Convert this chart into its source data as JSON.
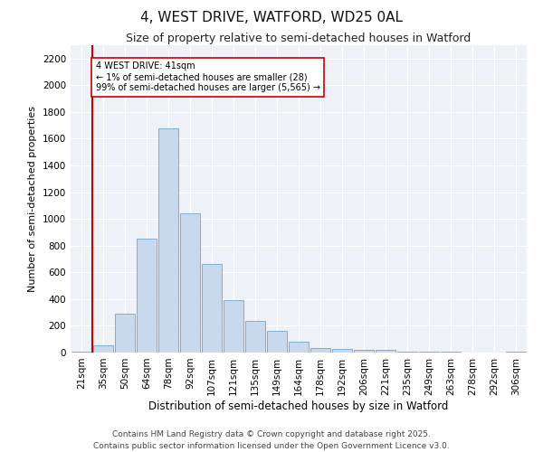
{
  "title": "4, WEST DRIVE, WATFORD, WD25 0AL",
  "subtitle": "Size of property relative to semi-detached houses in Watford",
  "xlabel": "Distribution of semi-detached houses by size in Watford",
  "ylabel": "Number of semi-detached properties",
  "bar_color": "#c8d9ee",
  "bar_edge_color": "#7bafd4",
  "background_color": "#eef2f8",
  "grid_color": "#ffffff",
  "fig_background": "#ffffff",
  "categories": [
    "21sqm",
    "35sqm",
    "50sqm",
    "64sqm",
    "78sqm",
    "92sqm",
    "107sqm",
    "121sqm",
    "135sqm",
    "149sqm",
    "164sqm",
    "178sqm",
    "192sqm",
    "206sqm",
    "221sqm",
    "235sqm",
    "249sqm",
    "263sqm",
    "278sqm",
    "292sqm",
    "306sqm"
  ],
  "values": [
    10,
    55,
    290,
    850,
    1680,
    1040,
    660,
    395,
    235,
    160,
    80,
    35,
    25,
    20,
    20,
    10,
    5,
    5,
    2,
    1,
    5
  ],
  "ylim": [
    0,
    2300
  ],
  "yticks": [
    0,
    200,
    400,
    600,
    800,
    1000,
    1200,
    1400,
    1600,
    1800,
    2000,
    2200
  ],
  "vline_color": "#cc0000",
  "annotation_text": "4 WEST DRIVE: 41sqm\n← 1% of semi-detached houses are smaller (28)\n99% of semi-detached houses are larger (5,565) →",
  "footer": "Contains HM Land Registry data © Crown copyright and database right 2025.\nContains public sector information licensed under the Open Government Licence v3.0.",
  "title_fontsize": 11,
  "subtitle_fontsize": 9,
  "xlabel_fontsize": 8.5,
  "ylabel_fontsize": 8,
  "tick_fontsize": 7.5,
  "footer_fontsize": 6.5
}
